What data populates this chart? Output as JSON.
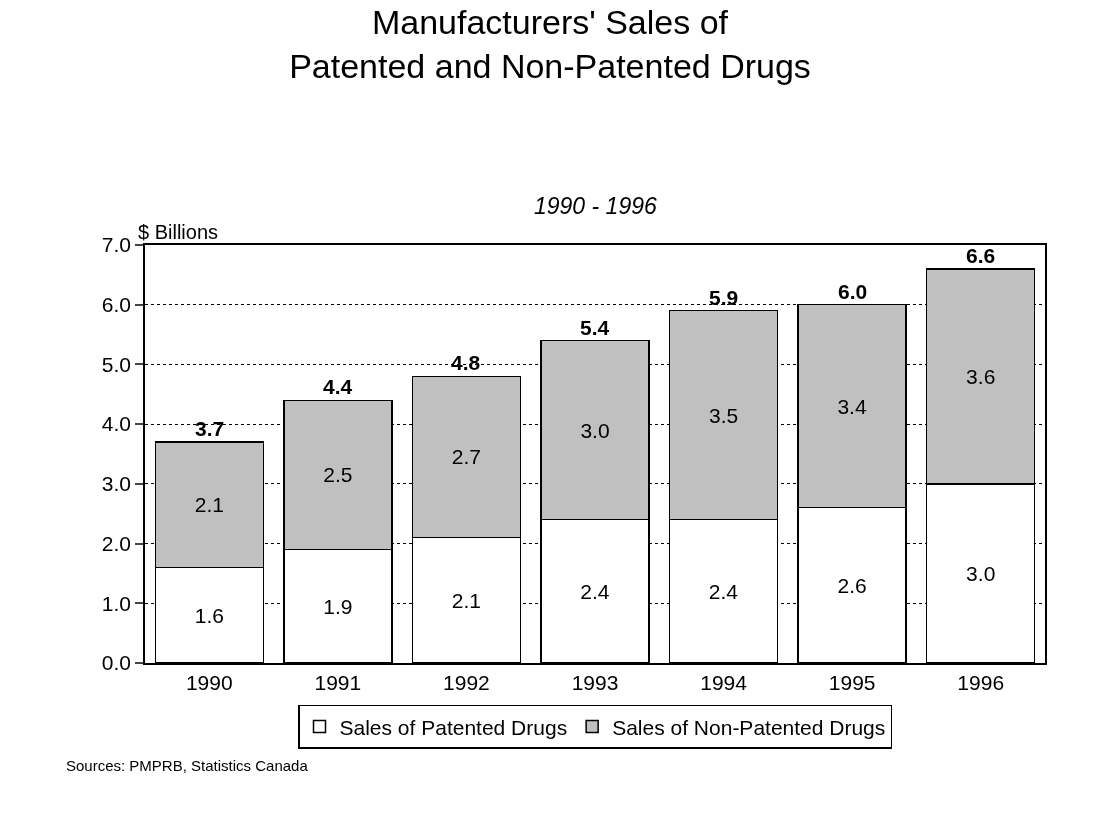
{
  "chart_data": {
    "type": "bar",
    "title": "Manufacturers' Sales of Patented and Non-Patented Drugs",
    "subtitle": "1990 - 1996",
    "ylabel": "$ Billions",
    "categories": [
      "1990",
      "1991",
      "1992",
      "1993",
      "1994",
      "1995",
      "1996"
    ],
    "stacked": true,
    "series": [
      {
        "name": "Sales of Patented Drugs",
        "color": "#ffffff",
        "values": [
          1.6,
          1.9,
          2.1,
          2.4,
          2.4,
          2.6,
          3.0
        ],
        "value_labels": [
          "1.6",
          "1.9",
          "2.1",
          "2.4",
          "2.4",
          "2.6",
          "3.0"
        ]
      },
      {
        "name": "Sales of Non-Patented Drugs",
        "color": "#c0c0c0",
        "values": [
          2.1,
          2.5,
          2.7,
          3.0,
          3.5,
          3.4,
          3.6
        ],
        "value_labels": [
          "2.1",
          "2.5",
          "2.7",
          "3.0",
          "3.5",
          "3.4",
          "3.6"
        ]
      }
    ],
    "totals": [
      "3.7",
      "4.4",
      "4.8",
      "5.4",
      "5.9",
      "6.0",
      "6.6"
    ],
    "ylim": [
      0,
      7
    ],
    "yticks": [
      {
        "value": 0,
        "label": "0.0"
      },
      {
        "value": 1,
        "label": "1.0"
      },
      {
        "value": 2,
        "label": "2.0"
      },
      {
        "value": 3,
        "label": "3.0"
      },
      {
        "value": 4,
        "label": "4.0"
      },
      {
        "value": 5,
        "label": "5.0"
      },
      {
        "value": 6,
        "label": "6.0"
      },
      {
        "value": 7,
        "label": "7.0"
      }
    ],
    "grid": "y",
    "legend": "bottom",
    "annotations": [
      "Sources: PMPRB, Statistics Canada"
    ]
  }
}
